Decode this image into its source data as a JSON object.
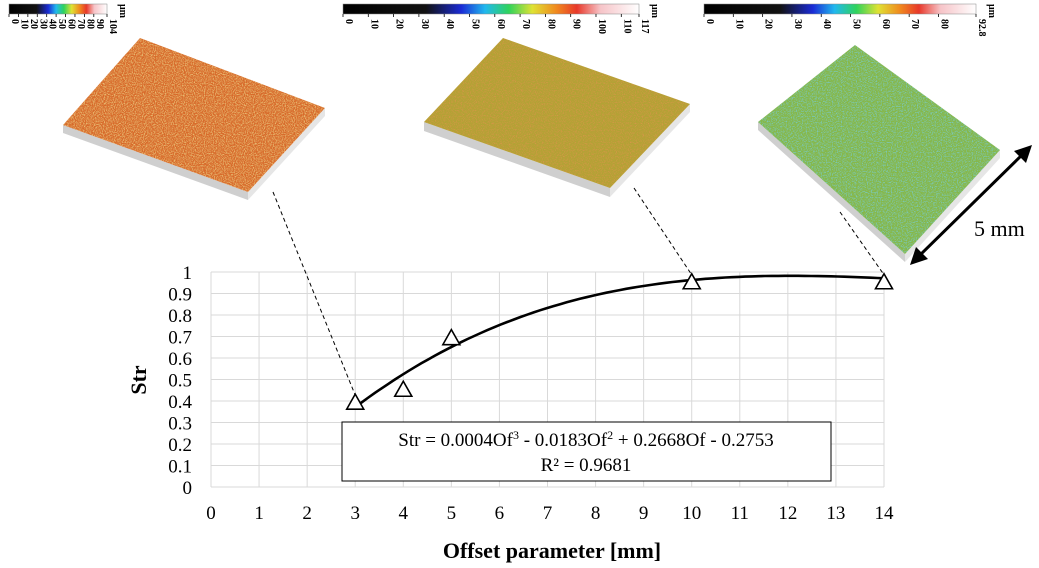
{
  "chart_data": {
    "type": "scatter",
    "xlabel": "Offset parameter [mm]",
    "ylabel": "Str",
    "xlim": [
      0,
      14
    ],
    "ylim": [
      0,
      1
    ],
    "xticks": [
      "0",
      "1",
      "2",
      "3",
      "4",
      "5",
      "6",
      "7",
      "8",
      "9",
      "10",
      "11",
      "12",
      "13",
      "14"
    ],
    "yticks": [
      "0",
      "0.1",
      "0.2",
      "0.3",
      "0.4",
      "0.5",
      "0.6",
      "0.7",
      "0.8",
      "0.9",
      "1"
    ],
    "grid": true,
    "series": [
      {
        "marker": "triangle-open",
        "x": [
          3,
          4,
          5,
          10,
          14
        ],
        "y": [
          0.39,
          0.45,
          0.69,
          0.95,
          0.95
        ]
      }
    ],
    "trendline": {
      "type": "polynomial-3",
      "coefficients": [
        0.0004,
        -0.0183,
        0.2668,
        -0.2753
      ],
      "x_range": [
        3,
        14
      ],
      "equation_parts": [
        "Str = 0.0004Of",
        "3",
        " - 0.0183Of",
        "2",
        " + 0.2668Of - 0.2753"
      ],
      "r2_label": "R² = 0.9681"
    }
  },
  "surfaces": [
    {
      "colorbar_unit": "μm",
      "colorbar_ticks": [
        "0",
        "10",
        "20",
        "30",
        "40",
        "50",
        "60",
        "70",
        "80",
        "90",
        "104"
      ],
      "colorbar_max": 104,
      "offset_x": 3
    },
    {
      "colorbar_unit": "μm",
      "colorbar_ticks": [
        "0",
        "10",
        "20",
        "30",
        "40",
        "50",
        "60",
        "70",
        "80",
        "90",
        "100",
        "110",
        "117"
      ],
      "colorbar_max": 117,
      "offset_x": 10
    },
    {
      "colorbar_unit": "μm",
      "colorbar_ticks": [
        "0",
        "10",
        "20",
        "30",
        "40",
        "50",
        "60",
        "70",
        "80",
        "92.8"
      ],
      "colorbar_max": 92.8,
      "offset_x": 14
    }
  ],
  "scale_label": "5 mm",
  "colors": {
    "surface_1": "#d86a2c",
    "surface_2": "#b3a235",
    "surface_3": "#86b849",
    "grid": "#d9d9d9"
  }
}
